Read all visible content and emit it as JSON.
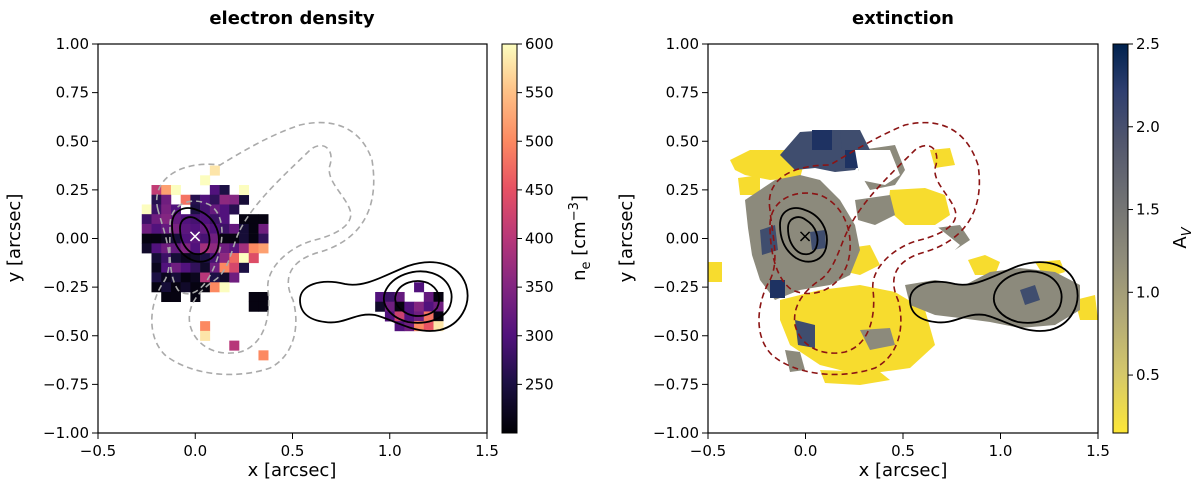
{
  "chart_data": [
    {
      "type": "heatmap",
      "title": "electron density",
      "xlabel": "x [arcsec]",
      "ylabel": "y [arcsec]",
      "xlim": [
        -0.5,
        1.5
      ],
      "ylim": [
        -1.0,
        1.0
      ],
      "xticks": [
        "−0.5",
        "0.0",
        "0.5",
        "1.0",
        "1.5"
      ],
      "yticks": [
        "−1.00",
        "−0.75",
        "−0.50",
        "−0.25",
        "0.00",
        "0.25",
        "0.50",
        "0.75",
        "1.00"
      ],
      "colorbar": {
        "label_main": "n",
        "label_sub": "e",
        "label_unit": " [cm",
        "label_exp": "−3",
        "label_close": "]",
        "range": [
          200,
          600
        ],
        "ticks": [
          "250",
          "300",
          "350",
          "400",
          "450",
          "500",
          "550",
          "600"
        ],
        "colormap": "magma"
      },
      "marker": {
        "x": 0.0,
        "y": 0.0,
        "symbol": "×",
        "color": "#ffffff"
      },
      "pixel_size": 0.05,
      "pixels": [
        [
          -0.2,
          0.25,
          410
        ],
        [
          -0.15,
          0.25,
          520
        ],
        [
          -0.1,
          0.25,
          600
        ],
        [
          0.05,
          0.3,
          600
        ],
        [
          0.1,
          0.35,
          580
        ],
        [
          0.1,
          0.25,
          300
        ],
        [
          0.15,
          0.25,
          250
        ],
        [
          0.2,
          0.2,
          350
        ],
        [
          0.25,
          0.2,
          240
        ],
        [
          -0.2,
          0.2,
          260
        ],
        [
          -0.15,
          0.2,
          330
        ],
        [
          -0.05,
          0.2,
          480
        ],
        [
          0.0,
          0.2,
          260
        ],
        [
          0.05,
          0.2,
          300
        ],
        [
          0.1,
          0.2,
          270
        ],
        [
          0.15,
          0.2,
          360
        ],
        [
          0.25,
          0.25,
          600
        ],
        [
          -0.25,
          0.15,
          600
        ],
        [
          -0.2,
          0.15,
          280
        ],
        [
          -0.15,
          0.15,
          340
        ],
        [
          -0.1,
          0.15,
          300
        ],
        [
          0.0,
          0.15,
          250
        ],
        [
          0.05,
          0.15,
          290
        ],
        [
          0.1,
          0.15,
          320
        ],
        [
          0.15,
          0.15,
          300
        ],
        [
          0.2,
          0.15,
          260
        ],
        [
          -0.25,
          0.1,
          280
        ],
        [
          -0.2,
          0.1,
          330
        ],
        [
          -0.15,
          0.1,
          350
        ],
        [
          -0.1,
          0.1,
          320
        ],
        [
          -0.05,
          0.1,
          300
        ],
        [
          0.0,
          0.1,
          290
        ],
        [
          0.05,
          0.1,
          300
        ],
        [
          0.1,
          0.1,
          280
        ],
        [
          0.15,
          0.1,
          300
        ],
        [
          0.25,
          0.1,
          210
        ],
        [
          0.3,
          0.1,
          210
        ],
        [
          0.35,
          0.1,
          210
        ],
        [
          -0.25,
          0.05,
          330
        ],
        [
          -0.2,
          0.05,
          300
        ],
        [
          -0.15,
          0.05,
          320
        ],
        [
          -0.1,
          0.05,
          340
        ],
        [
          -0.05,
          0.05,
          310
        ],
        [
          0.0,
          0.05,
          300
        ],
        [
          0.05,
          0.05,
          320
        ],
        [
          0.1,
          0.05,
          300
        ],
        [
          0.15,
          0.05,
          280
        ],
        [
          0.2,
          0.05,
          320
        ],
        [
          0.25,
          0.05,
          240
        ],
        [
          0.3,
          0.05,
          210
        ],
        [
          0.35,
          0.05,
          330
        ],
        [
          -0.25,
          0.0,
          210
        ],
        [
          -0.2,
          0.0,
          210
        ],
        [
          -0.15,
          0.0,
          220
        ],
        [
          -0.1,
          0.0,
          240
        ],
        [
          -0.05,
          0.0,
          300
        ],
        [
          0.0,
          0.0,
          310
        ],
        [
          0.05,
          0.0,
          290
        ],
        [
          0.1,
          0.0,
          330
        ],
        [
          0.15,
          0.0,
          210
        ],
        [
          0.2,
          0.0,
          210
        ],
        [
          0.25,
          0.0,
          240
        ],
        [
          0.3,
          0.0,
          210
        ],
        [
          0.35,
          0.0,
          270
        ],
        [
          -0.25,
          -0.05,
          230
        ],
        [
          -0.2,
          -0.05,
          300
        ],
        [
          -0.15,
          -0.05,
          330
        ],
        [
          -0.1,
          -0.05,
          320
        ],
        [
          -0.05,
          -0.05,
          350
        ],
        [
          0.0,
          -0.05,
          300
        ],
        [
          0.05,
          -0.05,
          380
        ],
        [
          0.1,
          -0.05,
          360
        ],
        [
          0.15,
          -0.05,
          330
        ],
        [
          0.2,
          -0.05,
          310
        ],
        [
          0.25,
          -0.05,
          380
        ],
        [
          0.3,
          -0.05,
          500
        ],
        [
          0.35,
          -0.05,
          520
        ],
        [
          -0.2,
          -0.1,
          240
        ],
        [
          -0.15,
          -0.1,
          280
        ],
        [
          -0.1,
          -0.1,
          240
        ],
        [
          -0.05,
          -0.1,
          220
        ],
        [
          0.0,
          -0.1,
          230
        ],
        [
          0.05,
          -0.1,
          250
        ],
        [
          0.1,
          -0.1,
          290
        ],
        [
          0.15,
          -0.1,
          360
        ],
        [
          0.2,
          -0.1,
          470
        ],
        [
          0.25,
          -0.1,
          600
        ],
        [
          0.3,
          -0.1,
          440
        ],
        [
          -0.2,
          -0.15,
          220
        ],
        [
          -0.15,
          -0.15,
          300
        ],
        [
          -0.1,
          -0.15,
          330
        ],
        [
          -0.05,
          -0.15,
          300
        ],
        [
          0.0,
          -0.15,
          270
        ],
        [
          0.05,
          -0.15,
          230
        ],
        [
          0.1,
          -0.15,
          330
        ],
        [
          0.15,
          -0.15,
          500
        ],
        [
          0.2,
          -0.15,
          430
        ],
        [
          0.25,
          -0.15,
          250
        ],
        [
          -0.2,
          -0.2,
          250
        ],
        [
          -0.15,
          -0.2,
          220
        ],
        [
          -0.1,
          -0.2,
          240
        ],
        [
          -0.05,
          -0.2,
          210
        ],
        [
          0.0,
          -0.2,
          220
        ],
        [
          0.05,
          -0.2,
          400
        ],
        [
          0.1,
          -0.2,
          250
        ],
        [
          0.15,
          -0.2,
          230
        ],
        [
          0.2,
          -0.2,
          330
        ],
        [
          -0.2,
          -0.25,
          210
        ],
        [
          -0.15,
          -0.25,
          240
        ],
        [
          -0.1,
          -0.25,
          210
        ],
        [
          -0.05,
          -0.25,
          230
        ],
        [
          0.0,
          -0.25,
          210
        ],
        [
          0.05,
          -0.25,
          210
        ],
        [
          0.1,
          -0.25,
          500
        ],
        [
          0.15,
          -0.25,
          600
        ],
        [
          -0.15,
          -0.3,
          210
        ],
        [
          -0.1,
          -0.3,
          210
        ],
        [
          0.0,
          -0.3,
          210
        ],
        [
          0.3,
          -0.3,
          210
        ],
        [
          0.35,
          -0.3,
          210
        ],
        [
          0.3,
          -0.35,
          210
        ],
        [
          0.35,
          -0.35,
          210
        ],
        [
          0.05,
          -0.45,
          500
        ],
        [
          0.05,
          -0.5,
          580
        ],
        [
          0.2,
          -0.55,
          400
        ],
        [
          0.35,
          -0.6,
          500
        ],
        [
          0.95,
          -0.3,
          300
        ],
        [
          1.0,
          -0.3,
          280
        ],
        [
          1.05,
          -0.3,
          320
        ],
        [
          1.15,
          -0.25,
          300
        ],
        [
          1.2,
          -0.3,
          320
        ],
        [
          1.25,
          -0.3,
          210
        ],
        [
          0.95,
          -0.35,
          230
        ],
        [
          1.0,
          -0.35,
          330
        ],
        [
          1.05,
          -0.35,
          210
        ],
        [
          1.1,
          -0.35,
          300
        ],
        [
          1.15,
          -0.35,
          350
        ],
        [
          1.2,
          -0.35,
          300
        ],
        [
          1.25,
          -0.35,
          330
        ],
        [
          1.0,
          -0.4,
          300
        ],
        [
          1.05,
          -0.4,
          420
        ],
        [
          1.1,
          -0.4,
          300
        ],
        [
          1.15,
          -0.4,
          330
        ],
        [
          1.2,
          -0.4,
          480
        ],
        [
          1.25,
          -0.4,
          210
        ],
        [
          1.05,
          -0.45,
          300
        ],
        [
          1.1,
          -0.45,
          330
        ],
        [
          1.15,
          -0.45,
          500
        ],
        [
          1.2,
          -0.45,
          450
        ],
        [
          1.25,
          -0.45,
          580
        ]
      ]
    },
    {
      "type": "heatmap",
      "title": "extinction",
      "xlabel": "x [arcsec]",
      "ylabel": "y [arcsec]",
      "xlim": [
        -0.5,
        1.5
      ],
      "ylim": [
        -1.0,
        1.0
      ],
      "xticks": [
        "−0.5",
        "0.0",
        "0.5",
        "1.0",
        "1.5"
      ],
      "yticks": [
        "−1.00",
        "−0.75",
        "−0.50",
        "−0.25",
        "0.00",
        "0.25",
        "0.50",
        "0.75",
        "1.00"
      ],
      "colorbar": {
        "label_main": "A",
        "label_sub": "V",
        "range": [
          0.15,
          2.5
        ],
        "ticks": [
          "0.5",
          "1.0",
          "1.5",
          "2.0",
          "2.5"
        ],
        "colormap": "cividis_r"
      },
      "marker": {
        "x": 0.0,
        "y": 0.0,
        "symbol": "×",
        "color": "#000000"
      }
    }
  ]
}
